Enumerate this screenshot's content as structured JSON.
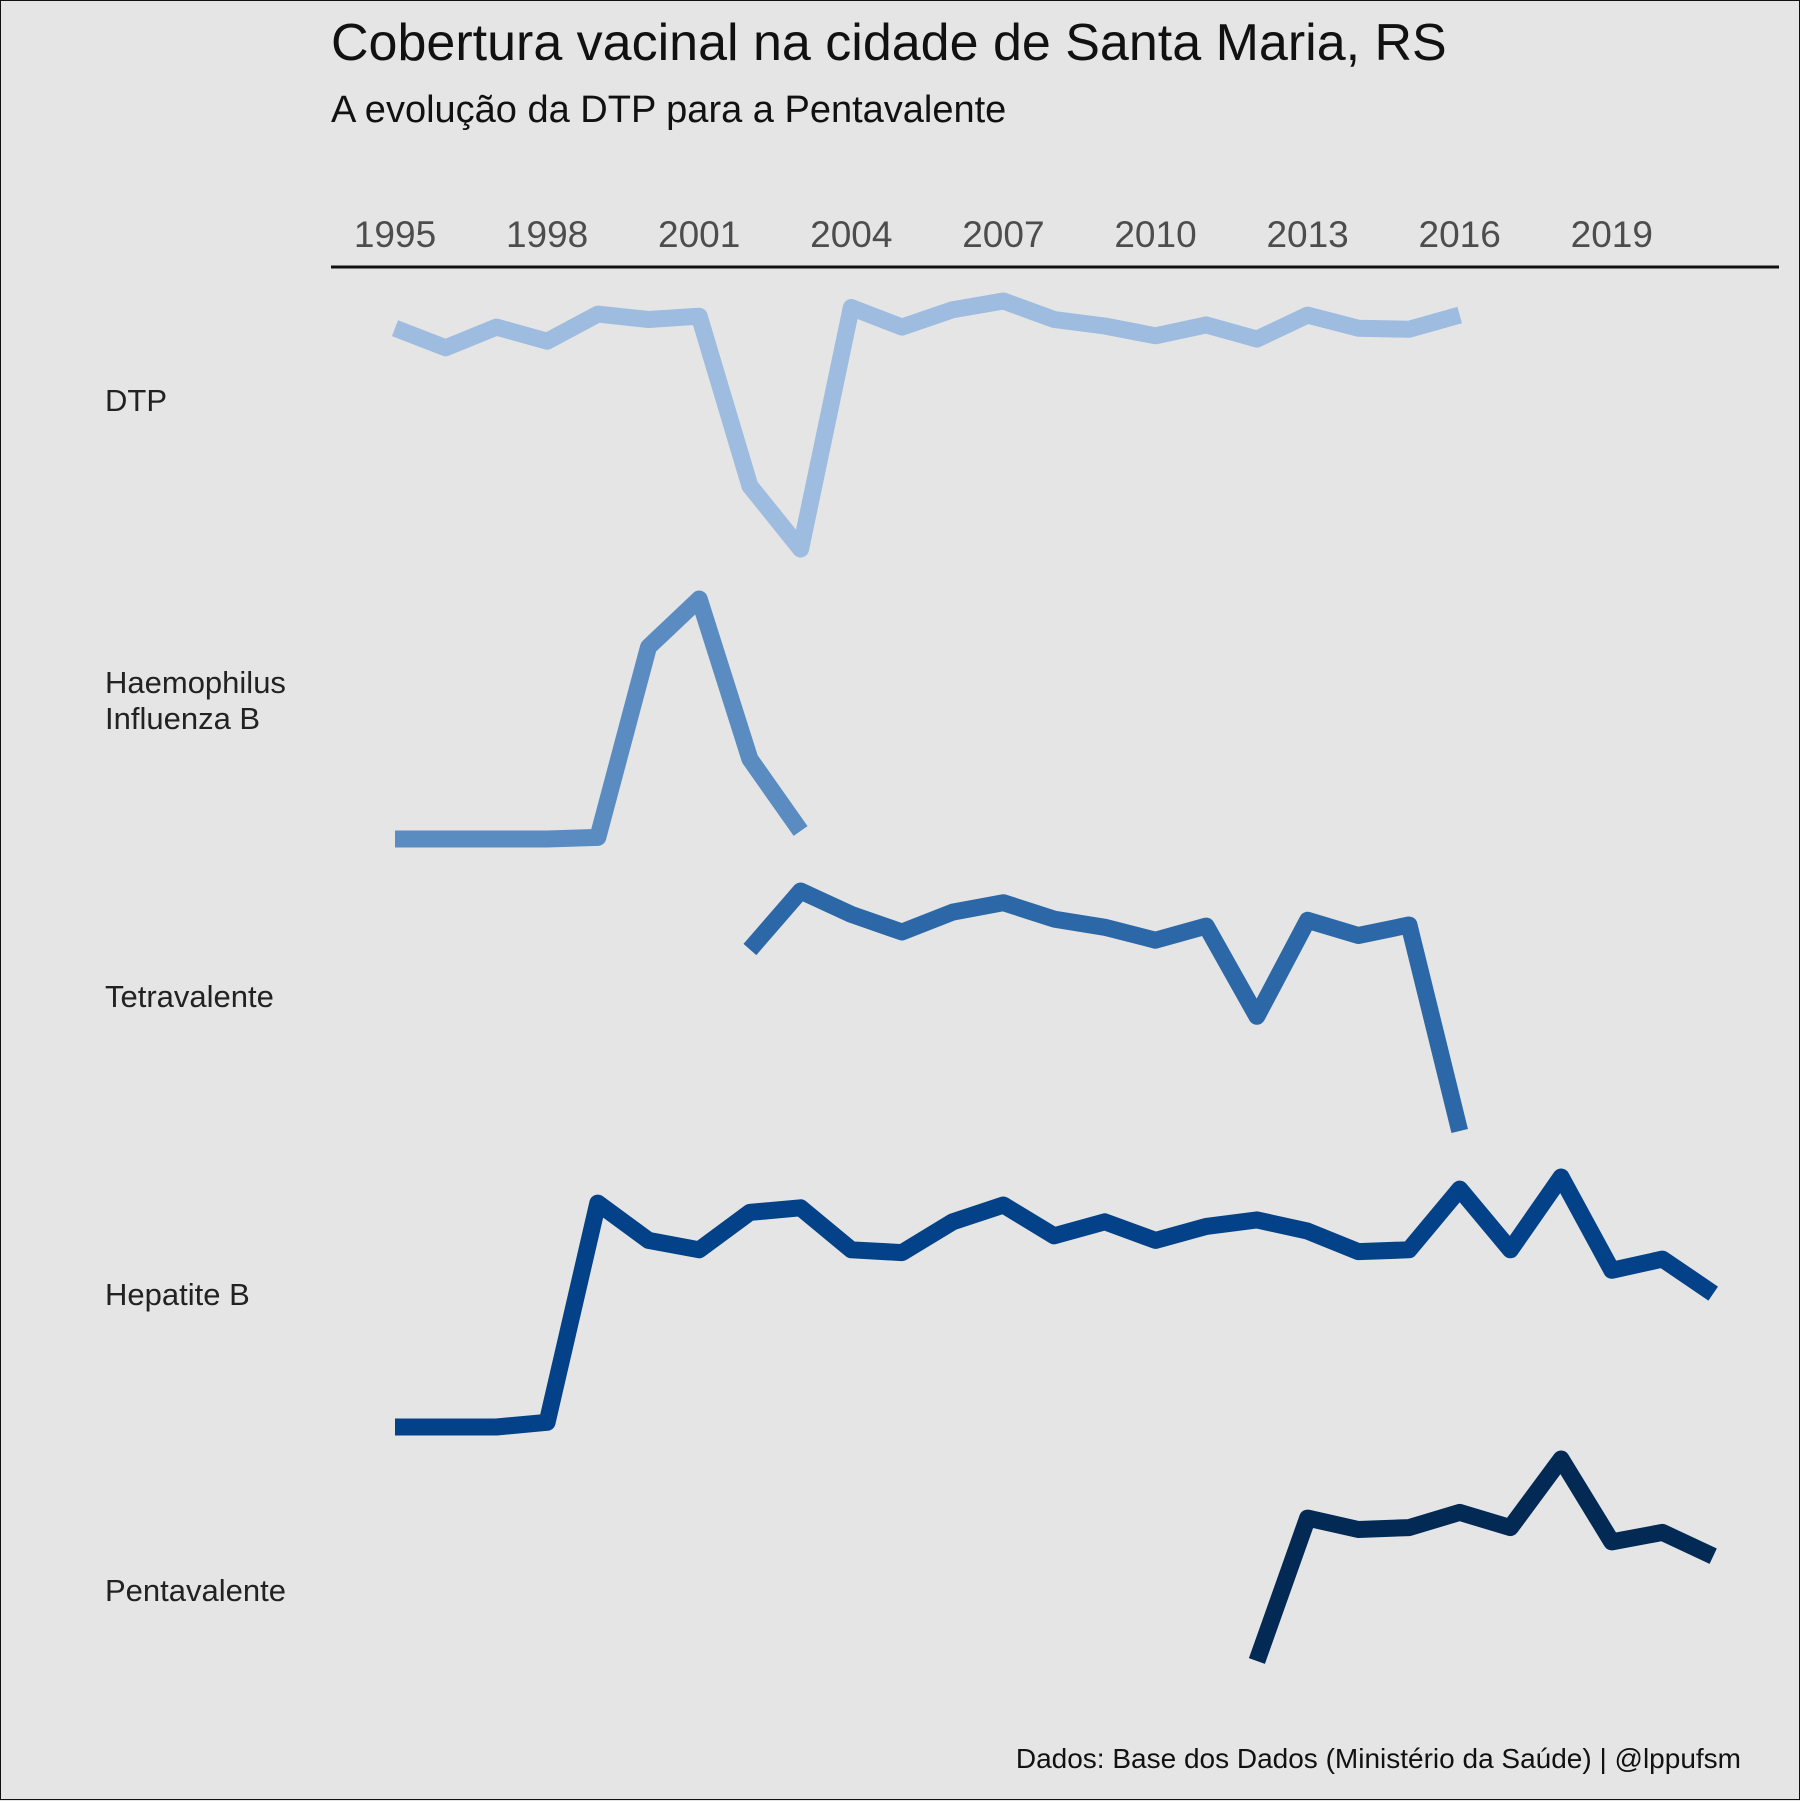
{
  "title": "Cobertura vacinal na cidade de Santa Maria, RS",
  "subtitle": "A evolução da DTP para a Pentavalente",
  "caption": "Dados: Base dos Dados (Ministério da Saúde) | @lppufsm",
  "chart_data": {
    "type": "line",
    "layout": "small-multiples",
    "xaxis_position": "top",
    "x_ticks": [
      1995,
      1998,
      2001,
      2004,
      2007,
      2010,
      2013,
      2016,
      2019
    ],
    "xlim": [
      1995,
      2021
    ],
    "grid": false,
    "legend": "none",
    "series": [
      {
        "name": "DTP",
        "label_lines": [
          "DTP"
        ],
        "color": "#9ebcdf",
        "x": [
          1995,
          1996,
          1997,
          1998,
          1999,
          2000,
          2001,
          2002,
          2003,
          2004,
          2005,
          2006,
          2007,
          2008,
          2009,
          2010,
          2011,
          2012,
          2013,
          2014,
          2015,
          2016
        ],
        "y": [
          96.8,
          95.0,
          96.9,
          95.6,
          98.1,
          97.6,
          97.9,
          82.3,
          76.5,
          98.7,
          96.9,
          98.5,
          99.3,
          97.6,
          97.0,
          96.1,
          97.1,
          95.8,
          98.0,
          96.8,
          96.7,
          98.0
        ]
      },
      {
        "name": "Haemophilus Influenza B",
        "label_lines": [
          "Haemophilus",
          "Influenza B"
        ],
        "color": "#5a8cc2",
        "x": [
          1995,
          1996,
          1997,
          1998,
          1999,
          2000,
          2001,
          2002,
          2003
        ],
        "y": [
          0,
          0,
          0,
          0,
          0.1,
          12,
          15,
          5,
          0.5
        ]
      },
      {
        "name": "Tetravalente",
        "label_lines": [
          "Tetravalente"
        ],
        "color": "#2c68a8",
        "x": [
          2002,
          2003,
          2004,
          2005,
          2006,
          2007,
          2008,
          2009,
          2010,
          2011,
          2012,
          2013,
          2014,
          2015,
          2016
        ],
        "y": [
          62,
          67,
          65,
          63.5,
          65.2,
          66,
          64.6,
          63.9,
          62.8,
          64,
          56.3,
          64.5,
          63.2,
          64.1,
          46.5
        ]
      },
      {
        "name": "Hepatite B",
        "label_lines": [
          "Hepatite B"
        ],
        "color": "#034288",
        "x": [
          1995,
          1996,
          1997,
          1998,
          1999,
          2000,
          2001,
          2002,
          2003,
          2004,
          2005,
          2006,
          2007,
          2008,
          2009,
          2010,
          2011,
          2012,
          2013,
          2014,
          2015,
          2016,
          2017,
          2018,
          2019,
          2020,
          2021
        ],
        "y": [
          0,
          0,
          0,
          0.5,
          24,
          20,
          19,
          23,
          23.5,
          19,
          18.7,
          22,
          23.8,
          20.5,
          22,
          20,
          21.5,
          22.2,
          21,
          18.8,
          19,
          25.5,
          19,
          26.8,
          16.8,
          18,
          14.3
        ]
      },
      {
        "name": "Pentavalente",
        "label_lines": [
          "Pentavalente"
        ],
        "color": "#022a54",
        "x": [
          2012,
          2013,
          2014,
          2015,
          2016,
          2017,
          2018,
          2019,
          2020,
          2021
        ],
        "y": [
          0,
          15,
          13.8,
          14,
          15.6,
          14,
          21.2,
          12.5,
          13.5,
          11
        ]
      }
    ]
  }
}
